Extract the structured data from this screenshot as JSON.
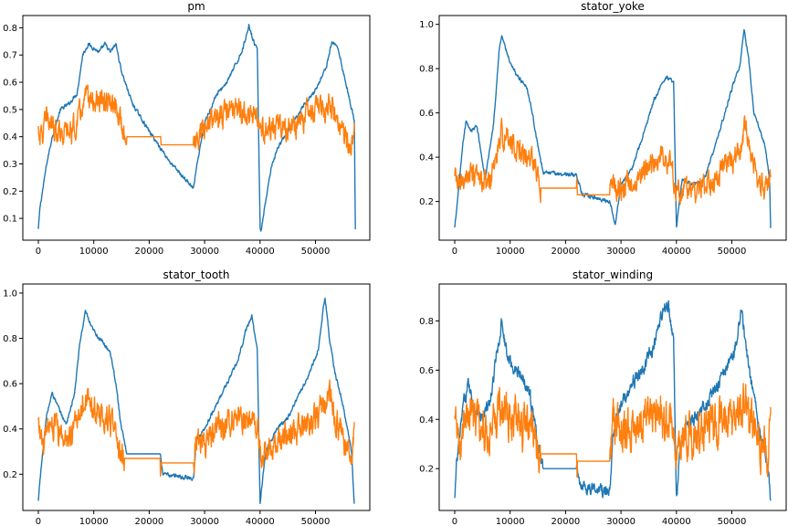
{
  "chart_data": [
    {
      "type": "line",
      "title": "pm",
      "xlim": [
        -2800,
        59800
      ],
      "ylim": [
        0.02,
        0.845
      ],
      "xticks": [
        0,
        10000,
        20000,
        30000,
        40000,
        50000
      ],
      "yticks": [
        0.1,
        0.2,
        0.3,
        0.4,
        0.5,
        0.6,
        0.7,
        0.8
      ],
      "series": [
        {
          "color": "#1f77b4",
          "noise": 0.012,
          "x": [
            0,
            300,
            1500,
            2500,
            4000,
            5500,
            7000,
            8000,
            9000,
            11000,
            12000,
            13000,
            14000,
            15000,
            17000,
            20000,
            24000,
            28000,
            28500,
            30000,
            32000,
            34000,
            36000,
            37000,
            38000,
            39000,
            39500,
            40000,
            40100,
            41000,
            42000,
            43000,
            45000,
            48000,
            50000,
            52000,
            53000,
            54000,
            56000,
            57000,
            57200
          ],
          "y": [
            0.06,
            0.14,
            0.3,
            0.4,
            0.5,
            0.52,
            0.56,
            0.7,
            0.74,
            0.71,
            0.74,
            0.71,
            0.74,
            0.64,
            0.52,
            0.42,
            0.3,
            0.21,
            0.28,
            0.45,
            0.55,
            0.6,
            0.68,
            0.73,
            0.81,
            0.74,
            0.73,
            0.07,
            0.05,
            0.16,
            0.28,
            0.35,
            0.42,
            0.52,
            0.57,
            0.66,
            0.75,
            0.73,
            0.55,
            0.46,
            0.06
          ]
        },
        {
          "color": "#ff7f0e",
          "noise": 0.05,
          "x": [
            0,
            500,
            1500,
            2500,
            3500,
            5000,
            6500,
            7500,
            8500,
            10000,
            11500,
            13000,
            14500,
            15500,
            16000,
            22000,
            22100,
            28000,
            28500,
            30000,
            32000,
            34000,
            36000,
            38000,
            39500,
            40000,
            42000,
            44000,
            46000,
            48000,
            50000,
            51500,
            52500,
            54000,
            55000,
            56500,
            57000
          ],
          "y": [
            0.43,
            0.4,
            0.46,
            0.45,
            0.43,
            0.41,
            0.43,
            0.48,
            0.54,
            0.53,
            0.52,
            0.52,
            0.48,
            0.41,
            0.4,
            0.4,
            0.37,
            0.37,
            0.39,
            0.44,
            0.47,
            0.49,
            0.5,
            0.48,
            0.47,
            0.41,
            0.42,
            0.44,
            0.43,
            0.47,
            0.5,
            0.5,
            0.52,
            0.46,
            0.4,
            0.38,
            0.45
          ]
        }
      ]
    },
    {
      "type": "line",
      "title": "stator_yoke",
      "xlim": [
        -2800,
        59800
      ],
      "ylim": [
        0.025,
        1.04
      ],
      "xticks": [
        0,
        10000,
        20000,
        30000,
        40000,
        50000
      ],
      "yticks": [
        0.2,
        0.4,
        0.6,
        0.8,
        1.0
      ],
      "series": [
        {
          "color": "#1f77b4",
          "noise": 0.015,
          "x": [
            0,
            300,
            1500,
            2000,
            3000,
            4000,
            5500,
            7000,
            8000,
            8500,
            10000,
            11500,
            13000,
            14000,
            15000,
            16000,
            22000,
            23000,
            28000,
            29000,
            30000,
            32000,
            34000,
            36000,
            38000,
            39500,
            40000,
            41000,
            43000,
            45000,
            47000,
            48500,
            50500,
            51500,
            52200,
            53000,
            54000,
            56000,
            56800,
            57000
          ],
          "y": [
            0.08,
            0.15,
            0.46,
            0.56,
            0.52,
            0.54,
            0.3,
            0.55,
            0.88,
            0.95,
            0.82,
            0.76,
            0.72,
            0.6,
            0.45,
            0.33,
            0.32,
            0.23,
            0.2,
            0.1,
            0.28,
            0.35,
            0.5,
            0.66,
            0.76,
            0.74,
            0.08,
            0.3,
            0.28,
            0.3,
            0.45,
            0.58,
            0.75,
            0.82,
            0.98,
            0.85,
            0.6,
            0.45,
            0.3,
            0.08
          ]
        },
        {
          "color": "#ff7f0e",
          "noise": 0.06,
          "x": [
            0,
            1000,
            2000,
            3500,
            5000,
            6500,
            7500,
            8500,
            10000,
            12000,
            13500,
            15000,
            15500,
            22000,
            22100,
            28000,
            28500,
            30000,
            32000,
            34000,
            36000,
            38000,
            39000,
            40000,
            42000,
            44000,
            46000,
            48000,
            50000,
            51500,
            52500,
            54000,
            55000,
            56500,
            57000
          ],
          "y": [
            0.3,
            0.26,
            0.33,
            0.3,
            0.28,
            0.3,
            0.4,
            0.5,
            0.48,
            0.42,
            0.4,
            0.35,
            0.26,
            0.26,
            0.23,
            0.23,
            0.27,
            0.27,
            0.28,
            0.33,
            0.38,
            0.4,
            0.38,
            0.25,
            0.25,
            0.26,
            0.27,
            0.33,
            0.38,
            0.43,
            0.55,
            0.37,
            0.3,
            0.24,
            0.31
          ]
        }
      ]
    },
    {
      "type": "line",
      "title": "stator_tooth",
      "xlim": [
        -2800,
        59800
      ],
      "ylim": [
        0.04,
        1.04
      ],
      "xticks": [
        0,
        10000,
        20000,
        30000,
        40000,
        50000
      ],
      "yticks": [
        0.2,
        0.4,
        0.6,
        0.8,
        1.0
      ],
      "series": [
        {
          "color": "#1f77b4",
          "noise": 0.015,
          "x": [
            0,
            300,
            1500,
            2500,
            3500,
            5000,
            6500,
            7500,
            8500,
            9500,
            11000,
            13000,
            14000,
            15000,
            16000,
            22000,
            22500,
            28000,
            28500,
            30000,
            32000,
            34000,
            36000,
            37500,
            38500,
            39500,
            40000,
            41000,
            43000,
            45000,
            47000,
            49000,
            50500,
            51700,
            52500,
            53500,
            55000,
            56500,
            57000
          ],
          "y": [
            0.08,
            0.18,
            0.46,
            0.56,
            0.5,
            0.42,
            0.55,
            0.78,
            0.92,
            0.85,
            0.8,
            0.74,
            0.6,
            0.4,
            0.29,
            0.29,
            0.2,
            0.18,
            0.35,
            0.4,
            0.5,
            0.6,
            0.7,
            0.84,
            0.9,
            0.75,
            0.07,
            0.3,
            0.4,
            0.45,
            0.55,
            0.65,
            0.75,
            0.99,
            0.8,
            0.65,
            0.5,
            0.3,
            0.07
          ]
        },
        {
          "color": "#ff7f0e",
          "noise": 0.07,
          "x": [
            0,
            1000,
            2000,
            3500,
            5000,
            6500,
            7500,
            8500,
            10000,
            12000,
            13500,
            14500,
            15500,
            22000,
            22100,
            28000,
            28500,
            30000,
            32000,
            34000,
            36000,
            38000,
            39500,
            40000,
            42000,
            44000,
            46000,
            48000,
            50000,
            51500,
            52500,
            54000,
            55000,
            56500,
            57000
          ],
          "y": [
            0.42,
            0.3,
            0.45,
            0.38,
            0.35,
            0.4,
            0.5,
            0.56,
            0.48,
            0.45,
            0.4,
            0.32,
            0.27,
            0.27,
            0.25,
            0.25,
            0.35,
            0.32,
            0.4,
            0.43,
            0.45,
            0.44,
            0.42,
            0.28,
            0.3,
            0.35,
            0.38,
            0.42,
            0.45,
            0.5,
            0.55,
            0.4,
            0.35,
            0.26,
            0.43
          ]
        }
      ]
    },
    {
      "type": "line",
      "title": "stator_winding",
      "xlim": [
        -2800,
        59800
      ],
      "ylim": [
        0.03,
        0.95
      ],
      "xticks": [
        0,
        10000,
        20000,
        30000,
        40000,
        50000
      ],
      "yticks": [
        0.2,
        0.4,
        0.6,
        0.8
      ],
      "series": [
        {
          "color": "#1f77b4",
          "noise": 0.05,
          "x": [
            0,
            300,
            1500,
            2500,
            3500,
            5000,
            6500,
            7500,
            8500,
            9500,
            11000,
            13000,
            14000,
            15000,
            16000,
            22000,
            23000,
            28000,
            28500,
            30000,
            32000,
            34000,
            36000,
            37500,
            38500,
            39500,
            40000,
            41000,
            43000,
            45000,
            47000,
            49000,
            50500,
            51700,
            52500,
            53500,
            55000,
            56500,
            57000
          ],
          "y": [
            0.07,
            0.2,
            0.45,
            0.55,
            0.45,
            0.4,
            0.48,
            0.65,
            0.8,
            0.65,
            0.6,
            0.55,
            0.45,
            0.3,
            0.2,
            0.2,
            0.13,
            0.1,
            0.35,
            0.45,
            0.55,
            0.6,
            0.7,
            0.83,
            0.88,
            0.7,
            0.07,
            0.35,
            0.4,
            0.45,
            0.52,
            0.6,
            0.68,
            0.85,
            0.7,
            0.55,
            0.35,
            0.22,
            0.07
          ]
        },
        {
          "color": "#ff7f0e",
          "noise": 0.1,
          "x": [
            0,
            1000,
            2000,
            3500,
            5000,
            6500,
            7500,
            8500,
            10000,
            12000,
            13500,
            14500,
            15500,
            22000,
            22100,
            28000,
            28500,
            30000,
            32000,
            34000,
            36000,
            38000,
            39500,
            40000,
            42000,
            44000,
            46000,
            48000,
            50000,
            51500,
            52500,
            54000,
            55000,
            56500,
            57000
          ],
          "y": [
            0.38,
            0.3,
            0.45,
            0.4,
            0.35,
            0.38,
            0.42,
            0.45,
            0.4,
            0.38,
            0.36,
            0.3,
            0.26,
            0.26,
            0.23,
            0.23,
            0.38,
            0.35,
            0.38,
            0.4,
            0.42,
            0.4,
            0.38,
            0.3,
            0.32,
            0.35,
            0.38,
            0.4,
            0.42,
            0.45,
            0.48,
            0.38,
            0.3,
            0.24,
            0.45
          ]
        }
      ]
    }
  ]
}
